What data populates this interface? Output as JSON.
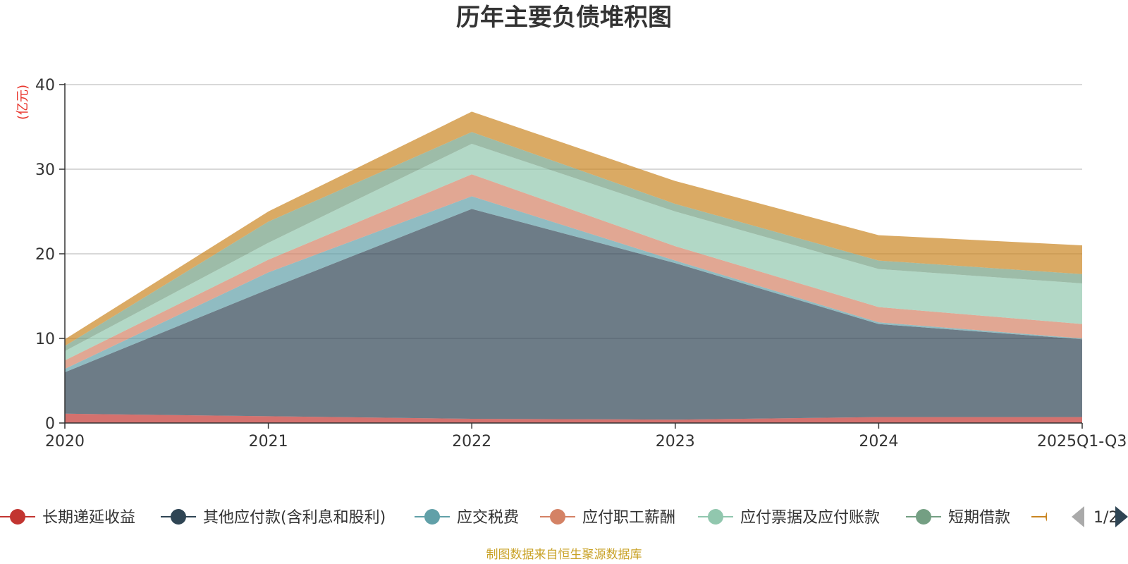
{
  "chart_data": {
    "type": "area",
    "stacked": true,
    "title": "历年主要负债堆积图",
    "ylabel": "(亿元)",
    "xlabel": "",
    "categories": [
      "2020",
      "2021",
      "2022",
      "2023",
      "2024",
      "2025Q1-Q3"
    ],
    "ylim": [
      0,
      40
    ],
    "yticks": [
      0,
      10,
      20,
      30,
      40
    ],
    "grid": true,
    "legend_position": "bottom",
    "series": [
      {
        "name": "长期递延收益",
        "color": "#c23531",
        "values": [
          1.1,
          0.8,
          0.5,
          0.4,
          0.7,
          0.7
        ]
      },
      {
        "name": "其他应付款(含利息和股利)",
        "color": "#2f4554",
        "values": [
          4.9,
          15.0,
          24.8,
          18.5,
          11.0,
          9.2
        ]
      },
      {
        "name": "应交税费",
        "color": "#61a0a8",
        "values": [
          0.4,
          2.0,
          1.5,
          0.3,
          0.2,
          0.1
        ]
      },
      {
        "name": "应付职工薪酬",
        "color": "#d48265",
        "values": [
          1.0,
          1.5,
          2.6,
          1.7,
          1.8,
          1.7
        ]
      },
      {
        "name": "应付票据及应付账款",
        "color": "#91c7ae",
        "values": [
          1.1,
          2.0,
          3.6,
          4.1,
          4.5,
          4.8
        ]
      },
      {
        "name": "短期借款",
        "color": "#749f83",
        "values": [
          0.6,
          2.5,
          1.4,
          0.9,
          1.0,
          1.1
        ]
      },
      {
        "name": "",
        "color": "#ca8622",
        "values": [
          0.8,
          1.2,
          2.4,
          2.7,
          3.0,
          3.4
        ]
      }
    ]
  },
  "legend": {
    "page_indicator": "1/2"
  },
  "footer": {
    "source": "制图数据来自恒生聚源数据库"
  },
  "colors": {
    "unit_label": "#e8332a",
    "source_text": "#c9a227",
    "grid": "#cccccc",
    "axis": "#333333",
    "pager_active": "#2f4554",
    "pager_inactive": "#aaaaaa"
  }
}
